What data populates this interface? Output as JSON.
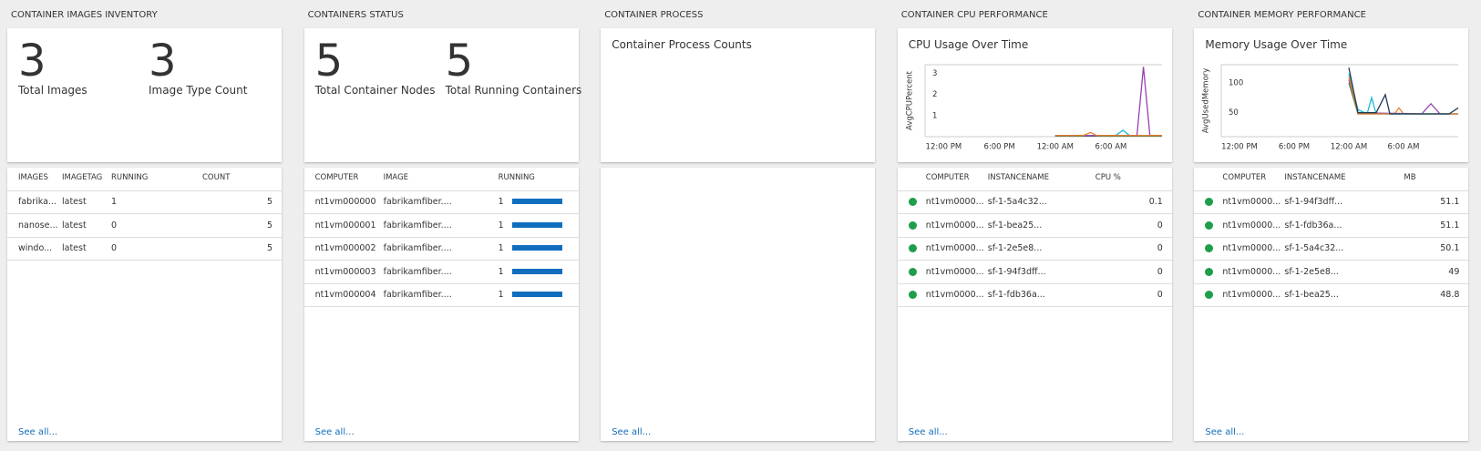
{
  "panels": [
    {
      "title": "CONTAINER IMAGES INVENTORY",
      "tiles": [
        {
          "value": 3,
          "label": "Total Images"
        },
        {
          "value": 3,
          "label": "Image Type Count"
        }
      ],
      "table": {
        "columns": [
          "IMAGES",
          "IMAGETAG",
          "RUNNING",
          "COUNT"
        ],
        "rows": [
          [
            "fabrika...",
            "latest",
            1,
            5
          ],
          [
            "nanose...",
            "latest",
            0,
            5
          ],
          [
            "windo...",
            "latest",
            0,
            5
          ]
        ]
      },
      "see_all": "See all..."
    },
    {
      "title": "CONTAINERS STATUS",
      "tiles": [
        {
          "value": 5,
          "label": "Total Container Nodes"
        },
        {
          "value": 5,
          "label": "Total Running Containers"
        }
      ],
      "table": {
        "columns": [
          "COMPUTER",
          "IMAGE",
          "RUNNING"
        ],
        "rows": [
          [
            "nt1vm000000",
            "fabrikamfiber....",
            1
          ],
          [
            "nt1vm000001",
            "fabrikamfiber....",
            1
          ],
          [
            "nt1vm000002",
            "fabrikamfiber....",
            1
          ],
          [
            "nt1vm000003",
            "fabrikamfiber....",
            1
          ],
          [
            "nt1vm000004",
            "fabrikamfiber....",
            1
          ]
        ],
        "bar_color": "#106ebe"
      },
      "see_all": "See all..."
    },
    {
      "title": "CONTAINER PROCESS",
      "heading": "Container Process Counts",
      "see_all": "See all..."
    },
    {
      "title": "CONTAINER CPU PERFORMANCE",
      "chart": {
        "type": "line",
        "title": "CPU Usage Over Time",
        "y_label": "AvgCPUPercent",
        "xlim": [
          0,
          25.5
        ],
        "xticks": [
          {
            "value": 2,
            "label": "12:00 PM"
          },
          {
            "value": 8,
            "label": "6:00 PM"
          },
          {
            "value": 14,
            "label": "12:00 AM"
          },
          {
            "value": 20,
            "label": "6:00 AM"
          }
        ],
        "ylim": [
          0,
          3.4
        ],
        "yticks": [
          1,
          2,
          3
        ],
        "series": [
          {
            "color": "#1e9e4a",
            "x": [
              14,
              25.5
            ],
            "values": [
              0.03,
              0.03
            ]
          },
          {
            "color": "#1f4e79",
            "x": [
              14,
              25.5
            ],
            "values": [
              0.04,
              0.04
            ]
          },
          {
            "color": "#1bbbd8",
            "x": [
              14,
              20.5,
              21.3,
              22,
              25.5
            ],
            "values": [
              0.05,
              0.05,
              0.3,
              0.05,
              0.05
            ]
          },
          {
            "color": "#9b3fb5",
            "x": [
              14,
              22.8,
              23.5,
              24.2,
              25.5
            ],
            "values": [
              0.05,
              0.05,
              3.3,
              0.05,
              0.05
            ]
          },
          {
            "color": "#f07f20",
            "x": [
              14,
              17,
              17.8,
              18.5,
              25.5
            ],
            "values": [
              0.05,
              0.05,
              0.2,
              0.05,
              0.05
            ]
          }
        ]
      },
      "table": {
        "columns": [
          "COMPUTER",
          "INSTANCENAME",
          "CPU %"
        ],
        "rows": [
          [
            "nt1vm0000...",
            "sf-1-5a4c32...",
            0.1
          ],
          [
            "nt1vm0000...",
            "sf-1-bea25...",
            0
          ],
          [
            "nt1vm0000...",
            "sf-1-2e5e8...",
            0
          ],
          [
            "nt1vm0000...",
            "sf-1-94f3dff...",
            0
          ],
          [
            "nt1vm0000...",
            "sf-1-fdb36a...",
            0
          ]
        ]
      },
      "see_all": "See all..."
    },
    {
      "title": "CONTAINER MEMORY PERFORMANCE",
      "chart": {
        "type": "line",
        "title": "Memory Usage Over Time",
        "y_label": "AvgUsedMemory",
        "xlim": [
          0,
          26
        ],
        "xticks": [
          {
            "value": 2,
            "label": "12:00 PM"
          },
          {
            "value": 8,
            "label": "6:00 PM"
          },
          {
            "value": 14,
            "label": "12:00 AM"
          },
          {
            "value": 20,
            "label": "6:00 AM"
          }
        ],
        "ylim": [
          10,
          130
        ],
        "yticks": [
          50,
          100
        ],
        "series": [
          {
            "color": "#1e9e4a",
            "x": [
              14,
              15,
              26
            ],
            "values": [
              100,
              48,
              48
            ]
          },
          {
            "color": "#9b3fb5",
            "x": [
              14,
              15,
              22,
              23,
              24,
              26
            ],
            "values": [
              105,
              50,
              48,
              65,
              48,
              48
            ]
          },
          {
            "color": "#1bbbd8",
            "x": [
              14,
              15,
              16,
              16.5,
              17,
              26
            ],
            "values": [
              115,
              55,
              48,
              75,
              48,
              48
            ]
          },
          {
            "color": "#f07f20",
            "x": [
              14,
              15,
              19,
              19.5,
              20,
              26
            ],
            "values": [
              110,
              48,
              48,
              58,
              48,
              48
            ]
          },
          {
            "color": "#1f3b5a",
            "x": [
              14,
              15,
              17,
              18,
              18.5,
              25,
              26
            ],
            "values": [
              125,
              50,
              50,
              80,
              48,
              48,
              58
            ]
          }
        ]
      },
      "table": {
        "columns": [
          "COMPUTER",
          "INSTANCENAME",
          "MB"
        ],
        "rows": [
          [
            "nt1vm0000...",
            "sf-1-94f3dff...",
            51.1
          ],
          [
            "nt1vm0000...",
            "sf-1-fdb36a...",
            51.1
          ],
          [
            "nt1vm0000...",
            "sf-1-5a4c32...",
            50.1
          ],
          [
            "nt1vm0000...",
            "sf-1-2e5e8...",
            49
          ],
          [
            "nt1vm0000...",
            "sf-1-bea25...",
            48.8
          ]
        ]
      },
      "see_all": "See all..."
    }
  ]
}
